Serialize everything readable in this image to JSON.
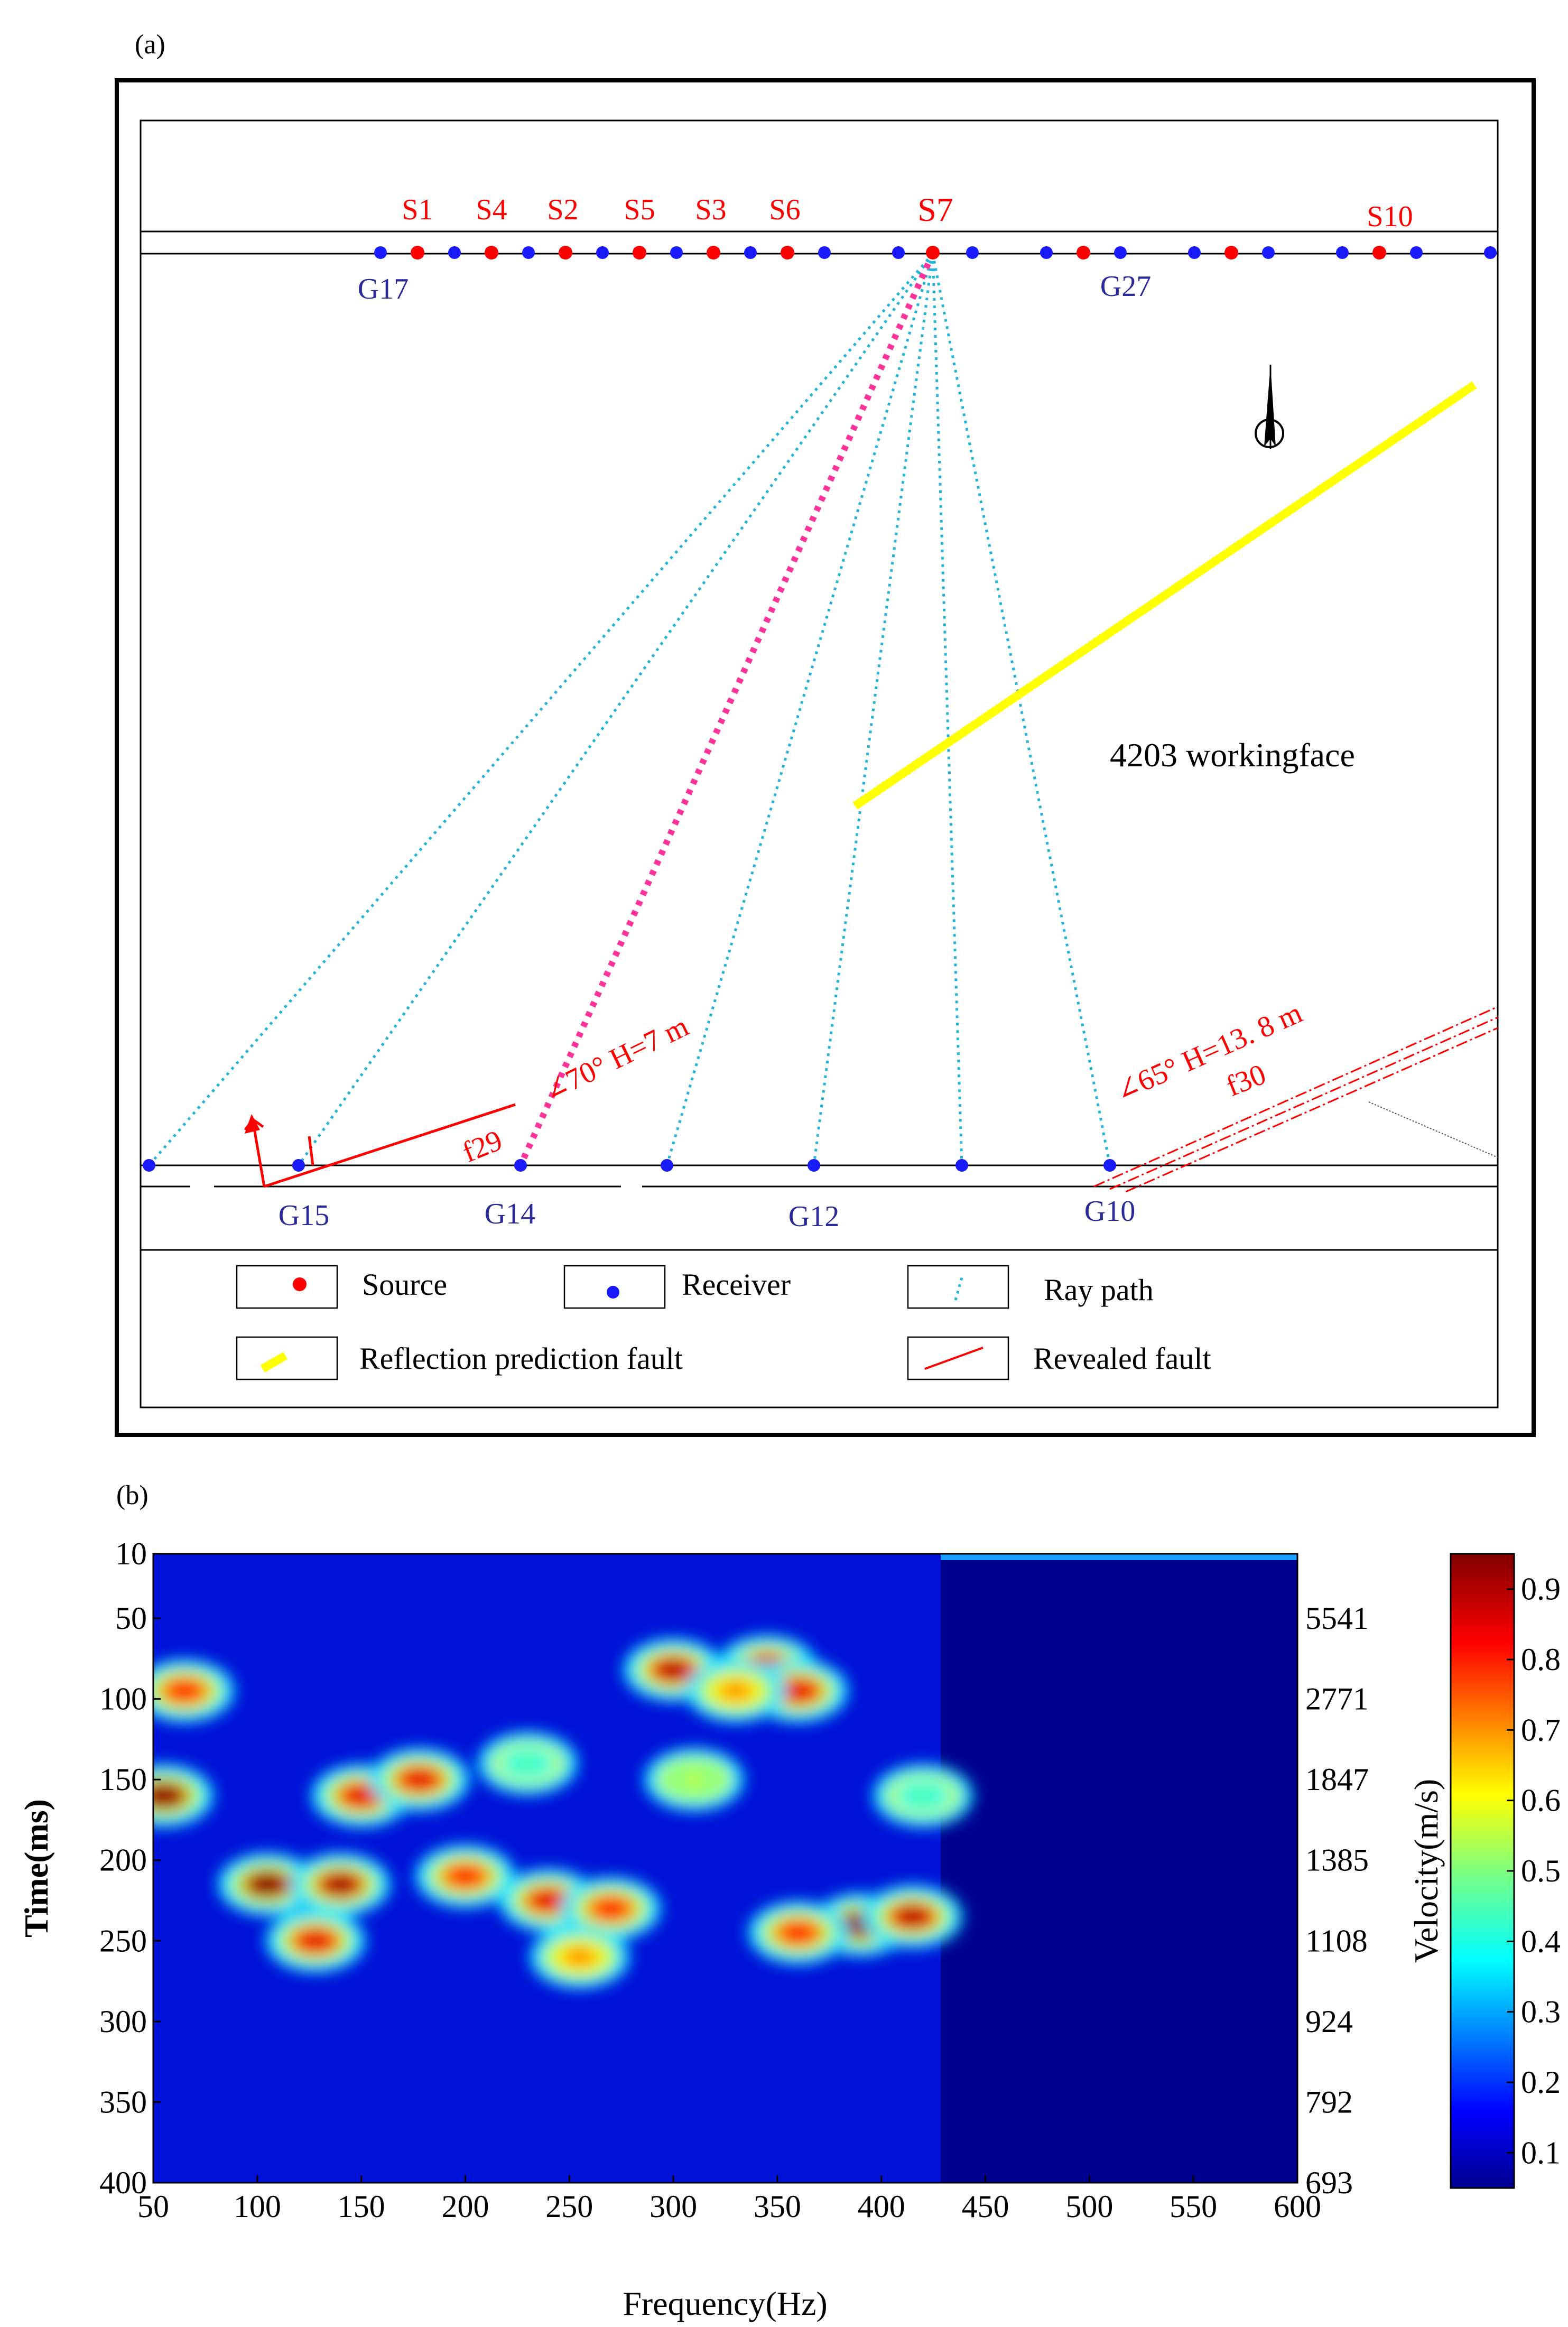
{
  "panel_a": {
    "label": "(a)",
    "sources": [
      "S1",
      "S4",
      "S2",
      "S5",
      "S3",
      "S6",
      "S7",
      "S10"
    ],
    "receivers": [
      "G17",
      "G27",
      "G15",
      "G14",
      "G12",
      "G10"
    ],
    "workingface": "4203 workingface",
    "fault_f29": {
      "name": "f29",
      "annotation": "∠70°   H=7 m"
    },
    "fault_f30": {
      "name": "f30",
      "annotation": "∠65°   H=13. 8 m"
    },
    "legend": {
      "source": "Source",
      "receiver": "Receiver",
      "ray_path": "Ray path",
      "reflection_fault": "Reflection prediction fault",
      "revealed_fault": "Revealed fault"
    },
    "colors": {
      "source": "#ff0000",
      "receiver": "#1a1aff",
      "ray": "#1fb4d8",
      "ray_main": "#ff3399",
      "predicted_fault": "#ffff00",
      "revealed_fault": "#ff0000"
    }
  },
  "panel_b": {
    "label": "(b)",
    "chart_data": {
      "type": "heatmap",
      "xlabel": "Frequency(Hz)",
      "ylabel": "Time(ms)",
      "colorbar_label": "Velocity(m/s)",
      "x_ticks": [
        "50",
        "100",
        "150",
        "200",
        "250",
        "300",
        "350",
        "400",
        "450",
        "500",
        "550",
        "600"
      ],
      "y_ticks": [
        "10",
        "50",
        "100",
        "150",
        "200",
        "250",
        "300",
        "350",
        "400"
      ],
      "right_ticks": [
        "5541",
        "2771",
        "1847",
        "1385",
        "1108",
        "924",
        "792",
        "693"
      ],
      "colorbar_ticks": [
        "0.9",
        "0.8",
        "0.7",
        "0.6",
        "0.5",
        "0.4",
        "0.3",
        "0.2",
        "0.1"
      ],
      "xlim": [
        50,
        600
      ],
      "ylim": [
        10,
        400
      ],
      "clim": [
        0.05,
        0.95
      ],
      "hotspots": [
        {
          "f": 55,
          "t": 160,
          "v": 0.95
        },
        {
          "f": 65,
          "t": 95,
          "v": 0.8
        },
        {
          "f": 105,
          "t": 215,
          "v": 0.95
        },
        {
          "f": 140,
          "t": 215,
          "v": 0.92
        },
        {
          "f": 128,
          "t": 250,
          "v": 0.85
        },
        {
          "f": 150,
          "t": 160,
          "v": 0.85
        },
        {
          "f": 178,
          "t": 150,
          "v": 0.85
        },
        {
          "f": 200,
          "t": 210,
          "v": 0.8
        },
        {
          "f": 240,
          "t": 225,
          "v": 0.85
        },
        {
          "f": 270,
          "t": 230,
          "v": 0.8
        },
        {
          "f": 255,
          "t": 260,
          "v": 0.7
        },
        {
          "f": 300,
          "t": 82,
          "v": 0.9
        },
        {
          "f": 345,
          "t": 80,
          "v": 0.88
        },
        {
          "f": 360,
          "t": 95,
          "v": 0.85
        },
        {
          "f": 330,
          "t": 95,
          "v": 0.7
        },
        {
          "f": 390,
          "t": 240,
          "v": 0.95
        },
        {
          "f": 415,
          "t": 235,
          "v": 0.9
        },
        {
          "f": 360,
          "t": 245,
          "v": 0.8
        },
        {
          "f": 310,
          "t": 150,
          "v": 0.55
        },
        {
          "f": 230,
          "t": 140,
          "v": 0.45
        },
        {
          "f": 420,
          "t": 160,
          "v": 0.45
        }
      ]
    }
  }
}
